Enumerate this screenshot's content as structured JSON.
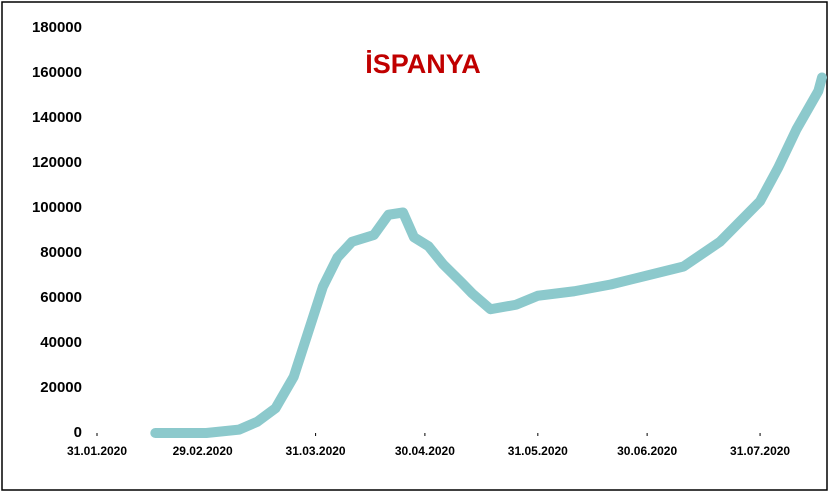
{
  "chart_data": {
    "type": "line",
    "title": "İSPANYA",
    "title_color": "#c00000",
    "x": [
      "16.02.2020",
      "01.03.2020",
      "10.03.2020",
      "15.03.2020",
      "20.03.2020",
      "25.03.2020",
      "29.03.2020",
      "02.04.2020",
      "06.04.2020",
      "10.04.2020",
      "16.04.2020",
      "20.04.2020",
      "24.04.2020",
      "27.04.2020",
      "01.05.2020",
      "05.05.2020",
      "10.05.2020",
      "13.05.2020",
      "18.05.2020",
      "25.05.2020",
      "31.05.2020",
      "10.06.2020",
      "20.06.2020",
      "30.06.2020",
      "10.07.2020",
      "20.07.2020",
      "31.07.2020",
      "05.08.2020",
      "10.08.2020",
      "16.08.2020",
      "17.08.2020"
    ],
    "series": [
      {
        "name": "İSPANYA",
        "color": "#8cc9cc",
        "values": [
          0,
          0,
          1500,
          5000,
          11000,
          25000,
          45000,
          65000,
          78000,
          85000,
          88000,
          97000,
          98000,
          87000,
          83000,
          75000,
          67000,
          62000,
          55000,
          57000,
          61000,
          63000,
          66000,
          70000,
          74000,
          85000,
          103000,
          118000,
          135000,
          152000,
          158000
        ]
      }
    ],
    "xlim": [
      "31.01.2020",
      "17.08.2020"
    ],
    "xticks": [
      "31.01.2020",
      "29.02.2020",
      "31.03.2020",
      "30.04.2020",
      "31.05.2020",
      "30.06.2020",
      "31.07.2020"
    ],
    "ylim": [
      0,
      180000
    ],
    "yticks": [
      0,
      20000,
      40000,
      60000,
      80000,
      100000,
      120000,
      140000,
      160000,
      180000
    ]
  }
}
